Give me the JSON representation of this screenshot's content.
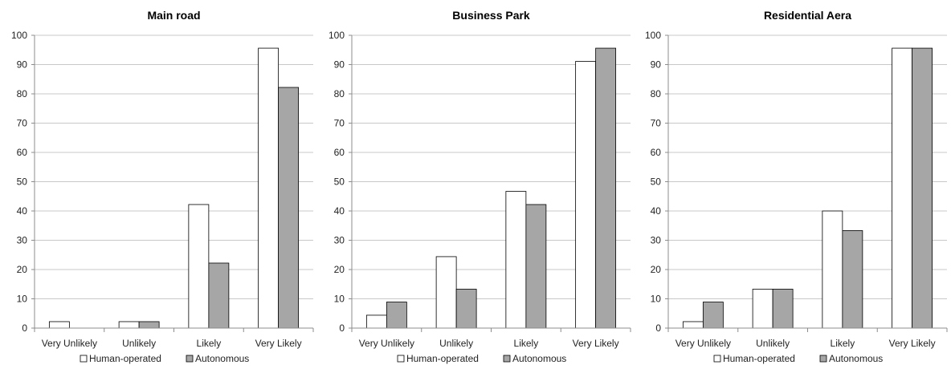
{
  "chart_data": [
    {
      "type": "bar",
      "title": "Main road",
      "categories": [
        "Very Unlikely",
        "Unlikely",
        "Likely",
        "Very Likely"
      ],
      "series": [
        {
          "name": "Human-operated",
          "values": [
            2.2,
            2.2,
            42.2,
            95.6
          ]
        },
        {
          "name": "Autonomous",
          "values": [
            0,
            2.2,
            22.2,
            82.2
          ]
        }
      ],
      "ylim": [
        0,
        100
      ],
      "yticks": [
        "0",
        "10",
        "20",
        "30",
        "40",
        "50",
        "60",
        "70",
        "80",
        "90",
        "100"
      ],
      "grid": true,
      "legend": "bottom"
    },
    {
      "type": "bar",
      "title": "Business Park",
      "categories": [
        "Very Unlikely",
        "Unlikely",
        "Likely",
        "Very Likely"
      ],
      "series": [
        {
          "name": "Human-operated",
          "values": [
            4.4,
            24.4,
            46.7,
            91.1
          ]
        },
        {
          "name": "Autonomous",
          "values": [
            8.9,
            13.3,
            42.2,
            95.6
          ]
        }
      ],
      "ylim": [
        0,
        100
      ],
      "yticks": [
        "0",
        "10",
        "20",
        "30",
        "40",
        "50",
        "60",
        "70",
        "80",
        "90",
        "100"
      ],
      "grid": true,
      "legend": "bottom"
    },
    {
      "type": "bar",
      "title": "Residential Aera",
      "categories": [
        "Very Unlikely",
        "Unlikely",
        "Likely",
        "Very Likely"
      ],
      "series": [
        {
          "name": "Human-operated",
          "values": [
            2.2,
            13.3,
            40.0,
            95.6
          ]
        },
        {
          "name": "Autonomous",
          "values": [
            8.9,
            13.3,
            33.3,
            95.6
          ]
        }
      ],
      "ylim": [
        0,
        100
      ],
      "yticks": [
        "0",
        "10",
        "20",
        "30",
        "40",
        "50",
        "60",
        "70",
        "80",
        "90",
        "100"
      ],
      "grid": true,
      "legend": "bottom"
    }
  ],
  "colors": {
    "Human-operated": "#ffffff",
    "Autonomous": "#a6a6a6",
    "bar_stroke": "#000000",
    "grid": "#c8c8c8",
    "axis": "#8c8c8c"
  }
}
